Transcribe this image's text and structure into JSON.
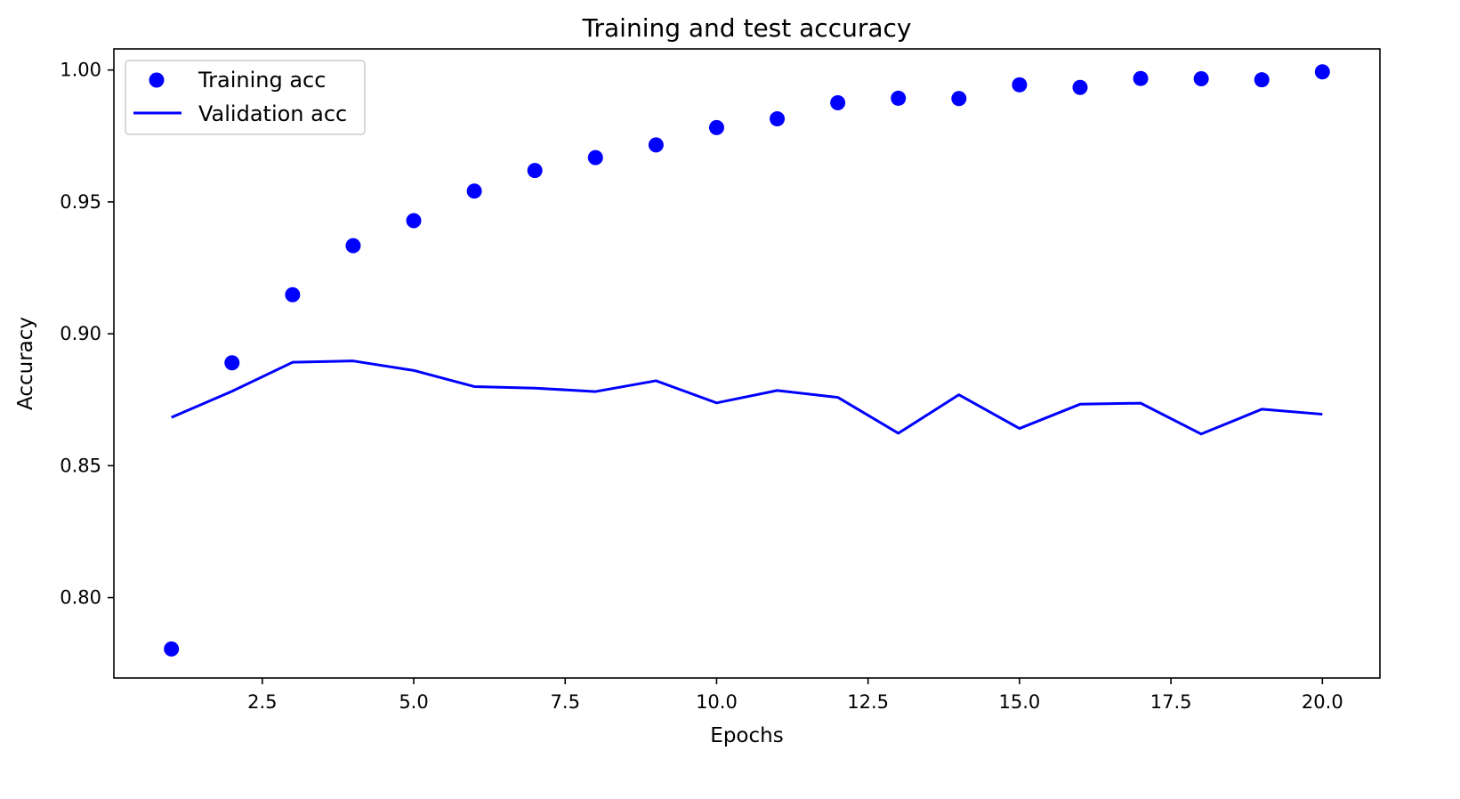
{
  "chart_data": {
    "type": "line",
    "title": "Training and test accuracy",
    "xlabel": "Epochs",
    "ylabel": "Accuracy",
    "xlim": [
      0.05,
      20.95
    ],
    "ylim": [
      0.7695,
      1.008
    ],
    "xticks": [
      2.5,
      5.0,
      7.5,
      10.0,
      12.5,
      15.0,
      17.5,
      20.0
    ],
    "xtick_labels": [
      "2.5",
      "5.0",
      "7.5",
      "10.0",
      "12.5",
      "15.0",
      "17.5",
      "20.0"
    ],
    "yticks": [
      0.8,
      0.85,
      0.9,
      0.95,
      1.0
    ],
    "ytick_labels": [
      "0.80",
      "0.85",
      "0.90",
      "0.95",
      "1.00"
    ],
    "grid": false,
    "legend_position": "top-left",
    "x": [
      1,
      2,
      3,
      4,
      5,
      6,
      7,
      8,
      9,
      10,
      11,
      12,
      13,
      14,
      15,
      16,
      17,
      18,
      19,
      20
    ],
    "series": [
      {
        "name": "Training acc",
        "style": "markers",
        "color": "#0000ff",
        "values": [
          0.7805,
          0.889,
          0.9148,
          0.9334,
          0.9429,
          0.9541,
          0.9619,
          0.9668,
          0.9716,
          0.9782,
          0.9815,
          0.9876,
          0.9893,
          0.9892,
          0.9944,
          0.9934,
          0.9968,
          0.9967,
          0.9963,
          0.9993
        ]
      },
      {
        "name": "Validation acc",
        "style": "line",
        "color": "#0000ff",
        "values": [
          0.8683,
          0.8782,
          0.8892,
          0.8897,
          0.8861,
          0.88,
          0.8794,
          0.8781,
          0.8822,
          0.8738,
          0.8785,
          0.8759,
          0.8623,
          0.8769,
          0.8641,
          0.8733,
          0.8737,
          0.862,
          0.8714,
          0.8695
        ]
      }
    ]
  }
}
